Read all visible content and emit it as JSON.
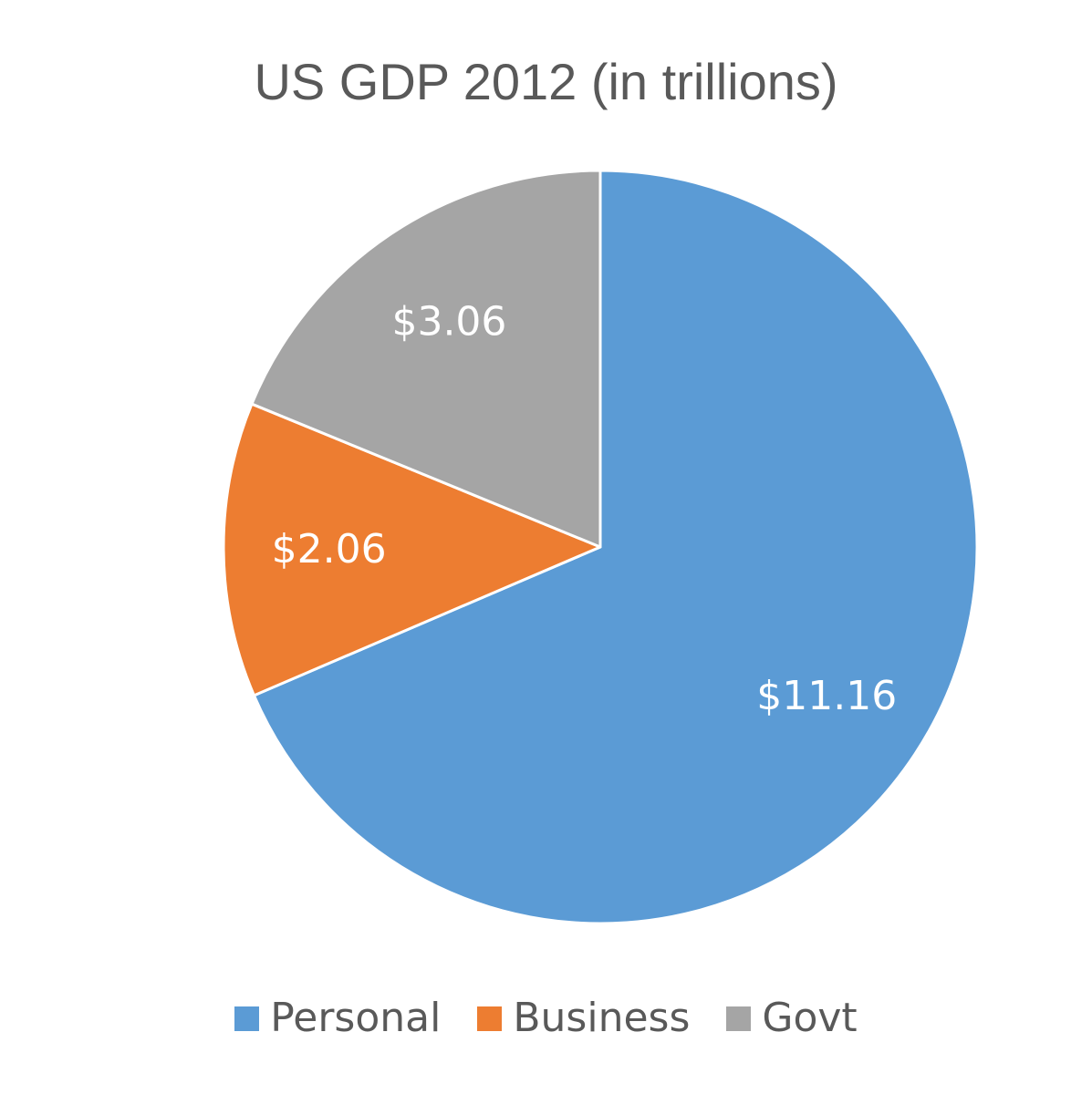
{
  "chart_data": {
    "type": "pie",
    "title": "US GDP 2012 (in trillions)",
    "categories": [
      "Personal",
      "Business",
      "Govt"
    ],
    "values": [
      11.16,
      2.06,
      3.06
    ],
    "labels": [
      "$11.16",
      "$2.06",
      "$3.06"
    ],
    "colors": [
      "#5b9bd5",
      "#ed7d31",
      "#a5a5a5"
    ],
    "legend_position": "bottom",
    "start_angle": "12 o'clock",
    "direction": "clockwise"
  }
}
